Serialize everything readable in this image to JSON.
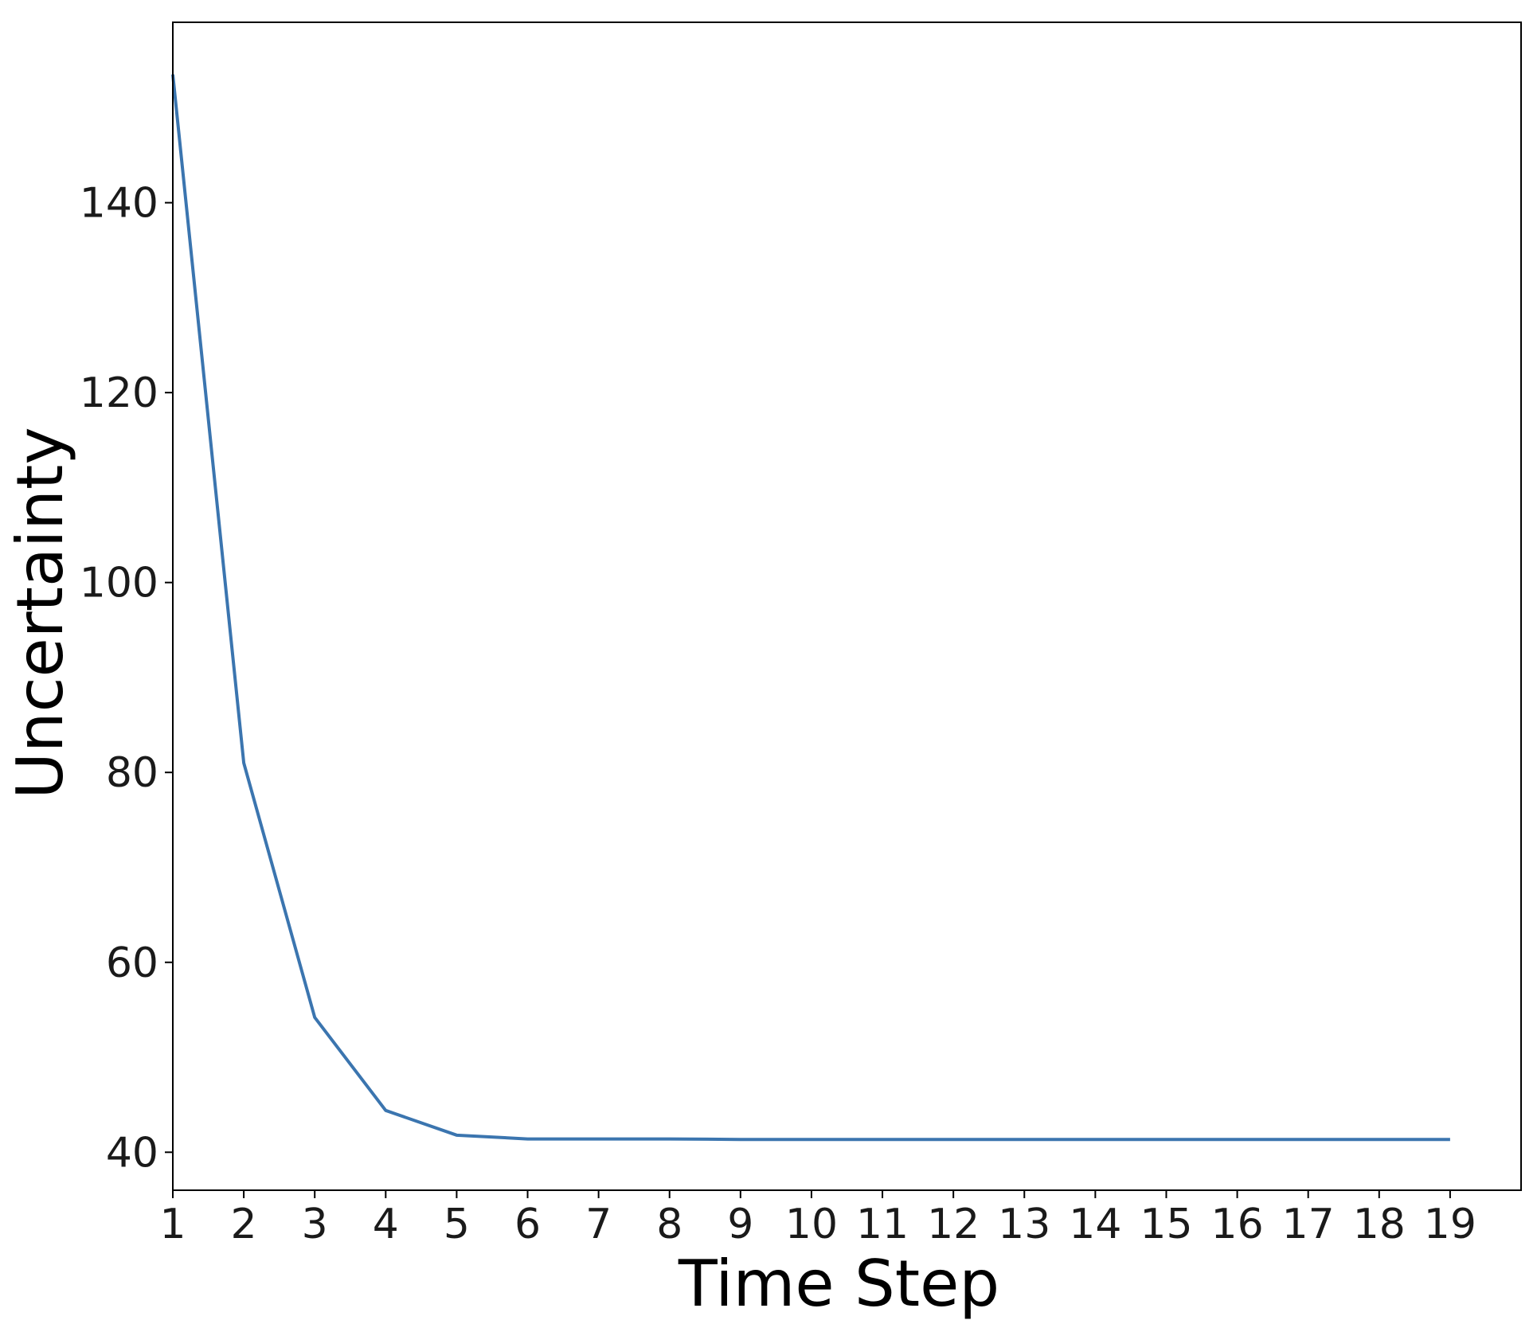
{
  "chart_data": {
    "type": "line",
    "title": "",
    "xlabel": "Time Step",
    "ylabel": "Uncertainty",
    "x": [
      1,
      2,
      3,
      4,
      5,
      6,
      7,
      8,
      9,
      10,
      11,
      12,
      13,
      14,
      15,
      16,
      17,
      18,
      19
    ],
    "series": [
      {
        "values": [
          153.5,
          81.0,
          54.2,
          44.4,
          41.8,
          41.4,
          41.4,
          41.4,
          41.35,
          41.35,
          41.35,
          41.35,
          41.35,
          41.35,
          41.35,
          41.35,
          41.35,
          41.35,
          41.35
        ],
        "color": "#3b75af"
      }
    ],
    "xticks": [
      "1",
      "2",
      "3",
      "4",
      "5",
      "6",
      "7",
      "8",
      "9",
      "10",
      "11",
      "12",
      "13",
      "14",
      "15",
      "16",
      "17",
      "18",
      "19"
    ],
    "yticks": [
      "40",
      "60",
      "80",
      "100",
      "120",
      "140"
    ],
    "xlim": [
      1,
      20
    ],
    "ylim": [
      36,
      159
    ],
    "grid": false,
    "legend": "none"
  }
}
